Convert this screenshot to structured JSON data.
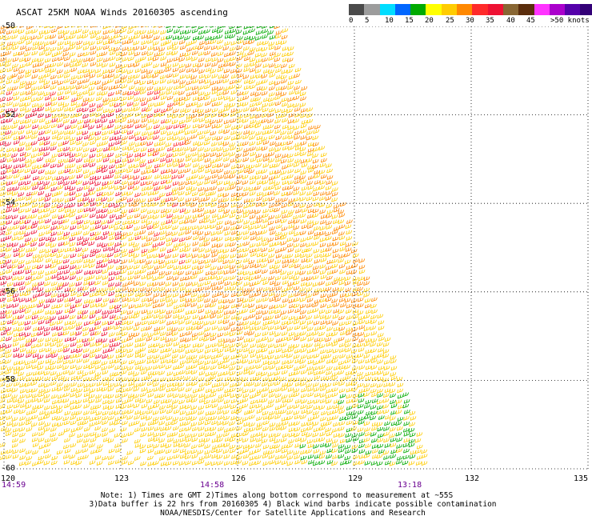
{
  "title": "ASCAT 25KM NOAA Winds 20160305 ascending",
  "legend": {
    "colors": [
      "#4a4a4a",
      "#9c9c9c",
      "#00ddff",
      "#0066ff",
      "#00aa00",
      "#ffff00",
      "#ffcc00",
      "#ff8800",
      "#ff2a2a",
      "#ee1133",
      "#886633",
      "#5a2d0c",
      "#ff33ff",
      "#aa00cc",
      "#5500aa",
      "#330077"
    ],
    "labels": [
      "0",
      "5",
      "10",
      "15",
      "20",
      "25",
      "30",
      "35",
      "40",
      "45",
      ">50 knots"
    ]
  },
  "map": {
    "lon_range": [
      120,
      135
    ],
    "lat_range": [
      -60,
      -50
    ],
    "lon_ticks": [
      "120",
      "123",
      "126",
      "129",
      "132",
      "135"
    ],
    "lat_ticks": [
      "-50",
      "-52",
      "-54",
      "-56",
      "-58",
      "-60"
    ],
    "grid": "dotted"
  },
  "times": [
    "14:59",
    "14:58",
    "13:18"
  ],
  "notes": {
    "line1": "Note: 1) Times are GMT 2)Times along bottom correspond to measurement at ~55S",
    "line2": "3)Data buffer is 22 hrs from 20160305 4) Black wind barbs indicate possible contamination",
    "line3": "NOAA/NESDIS/Center for Satellite Applications and Research"
  }
}
